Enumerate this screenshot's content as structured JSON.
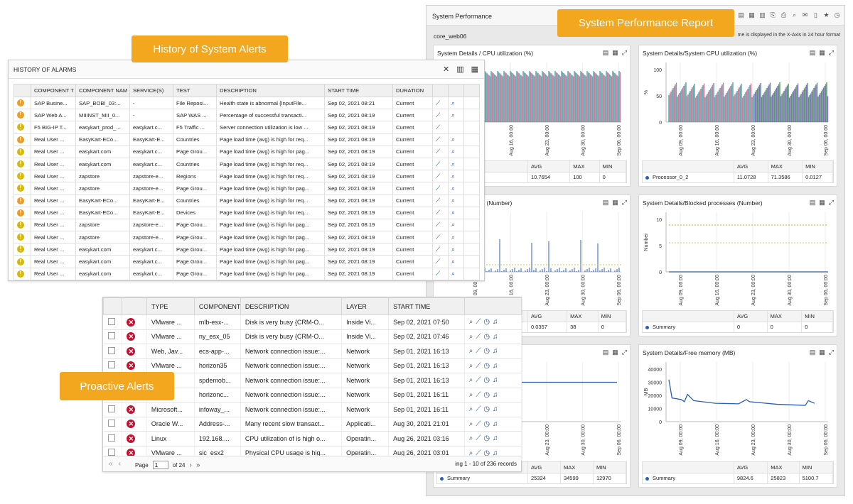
{
  "labels": {
    "history": "History of System Alerts",
    "performance": "System Performance Report",
    "proactive": "Proactive Alerts"
  },
  "performance": {
    "title": "System Performance",
    "server": "core_web06",
    "note": "me is displayed in the X-Axis in 24 hour format",
    "x_ticks": [
      "Aug 09, 00:00",
      "Aug 16, 00:00",
      "Aug 23, 00:00",
      "Aug 30, 00:00",
      "Sep 06, 00:00"
    ],
    "cards": [
      {
        "title": "System Details / CPU utilization (%)",
        "y_ticks": [],
        "ylabel": "",
        "summary": {
          "headers": [
            "AVG",
            "MAX",
            "MIN"
          ],
          "name": "",
          "avg": "10.7654",
          "max": "100",
          "min": "0"
        }
      },
      {
        "title": "System Details/System CPU utilization (%)",
        "y_ticks": [
          "100",
          "50",
          "0"
        ],
        "ylabel": "%",
        "summary": {
          "headers": [
            "AVG",
            "MAX",
            "MIN"
          ],
          "name": "Processor_0_2",
          "avg": "11.0728",
          "max": "71.3586",
          "min": "0.0127"
        }
      },
      {
        "title": "Run queue length (Number)",
        "y_ticks": [],
        "ylabel": "",
        "summary": {
          "headers": [
            "AVG",
            "MAX",
            "MIN"
          ],
          "name": "",
          "avg": "0.0357",
          "max": "38",
          "min": "0"
        }
      },
      {
        "title": "System Details/Blocked processes (Number)",
        "y_ticks": [
          "10",
          "5",
          "0"
        ],
        "ylabel": "Number",
        "summary": {
          "headers": [
            "AVG",
            "MAX",
            "MIN"
          ],
          "name": "Summary",
          "avg": "0",
          "max": "0",
          "min": "0"
        }
      },
      {
        "title": "y (MB)",
        "y_ticks": [],
        "ylabel": "",
        "summary": {
          "headers": [
            "AVG",
            "MAX",
            "MIN"
          ],
          "name": "Summary",
          "avg": "25324",
          "max": "34599",
          "min": "12970"
        }
      },
      {
        "title": "System Details/Free memory (MB)",
        "y_ticks": [
          "40000",
          "30000",
          "20000",
          "10000",
          "0"
        ],
        "ylabel": "MB",
        "summary": {
          "headers": [
            "AVG",
            "MAX",
            "MIN"
          ],
          "name": "Summary",
          "avg": "9824.6",
          "max": "25823",
          "min": "5100.7"
        }
      }
    ]
  },
  "alarms": {
    "title": "HISTORY OF ALARMS",
    "headers": [
      "COMPONENT T",
      "COMPONENT NAM",
      "SERVICE(S)",
      "TEST",
      "DESCRIPTION",
      "START TIME",
      "DURATION"
    ],
    "rows": [
      {
        "level": "major",
        "type": "SAP Busine...",
        "name": "SAP_BOBI_03:...",
        "service": "-",
        "test": "File Reposi...",
        "desc": "Health state is abnormal {InputFile...",
        "start": "Sep 02, 2021 08:21",
        "duration": "Current"
      },
      {
        "level": "major",
        "type": "SAP Web A...",
        "name": "MIIINST_MII_0...",
        "service": "-",
        "test": "SAP WAS ...",
        "desc": "Percentage of successful transacti...",
        "start": "Sep 02, 2021 08:19",
        "duration": "Current"
      },
      {
        "level": "minor",
        "type": "F5 BIG-IP T...",
        "name": "easykart_prod_...",
        "service": "easykart.c...",
        "test": "F5 Traffic ...",
        "desc": "Server connection utilization is low ...",
        "start": "Sep 02, 2021 08:19",
        "duration": "Current"
      },
      {
        "level": "major",
        "type": "Real User ...",
        "name": "EasyKart-ECo...",
        "service": "EasyKart-E...",
        "test": "Countries",
        "desc": "Page load time (avg) is high for req...",
        "start": "Sep 02, 2021 08:19",
        "duration": "Current"
      },
      {
        "level": "minor",
        "type": "Real User ...",
        "name": "easykart.com",
        "service": "easykart.c...",
        "test": "Page Grou...",
        "desc": "Page load time (avg) is high for pag...",
        "start": "Sep 02, 2021 08:19",
        "duration": "Current"
      },
      {
        "level": "minor",
        "type": "Real User ...",
        "name": "easykart.com",
        "service": "easykart.c...",
        "test": "Countries",
        "desc": "Page load time (avg) is high for req...",
        "start": "Sep 02, 2021 08:19",
        "duration": "Current"
      },
      {
        "level": "minor",
        "type": "Real User ...",
        "name": "zapstore",
        "service": "zapstore-e...",
        "test": "Regions",
        "desc": "Page load time (avg) is high for req...",
        "start": "Sep 02, 2021 08:19",
        "duration": "Current"
      },
      {
        "level": "minor",
        "type": "Real User ...",
        "name": "zapstore",
        "service": "zapstore-e...",
        "test": "Page Grou...",
        "desc": "Page load time (avg) is high for pag...",
        "start": "Sep 02, 2021 08:19",
        "duration": "Current"
      },
      {
        "level": "major",
        "type": "Real User ...",
        "name": "EasyKart-ECo...",
        "service": "EasyKart-E...",
        "test": "Countries",
        "desc": "Page load time (avg) is high for req...",
        "start": "Sep 02, 2021 08:19",
        "duration": "Current"
      },
      {
        "level": "major",
        "type": "Real User ...",
        "name": "EasyKart-ECo...",
        "service": "EasyKart-E...",
        "test": "Devices",
        "desc": "Page load time (avg) is high for req...",
        "start": "Sep 02, 2021 08:19",
        "duration": "Current"
      },
      {
        "level": "minor",
        "type": "Real User ...",
        "name": "zapstore",
        "service": "zapstore-e...",
        "test": "Page Grou...",
        "desc": "Page load time (avg) is high for pag...",
        "start": "Sep 02, 2021 08:19",
        "duration": "Current"
      },
      {
        "level": "minor",
        "type": "Real User ...",
        "name": "zapstore",
        "service": "zapstore-e...",
        "test": "Page Grou...",
        "desc": "Page load time (avg) is high for pag...",
        "start": "Sep 02, 2021 08:19",
        "duration": "Current"
      },
      {
        "level": "minor",
        "type": "Real User ...",
        "name": "easykart.com",
        "service": "easykart.c...",
        "test": "Page Grou...",
        "desc": "Page load time (avg) is high for pag...",
        "start": "Sep 02, 2021 08:19",
        "duration": "Current"
      },
      {
        "level": "minor",
        "type": "Real User ...",
        "name": "easykart.com",
        "service": "easykart.c...",
        "test": "Page Grou...",
        "desc": "Page load time (avg) is high for pag...",
        "start": "Sep 02, 2021 08:19",
        "duration": "Current"
      },
      {
        "level": "minor",
        "type": "Real User ...",
        "name": "easykart.com",
        "service": "easykart.c...",
        "test": "Page Grou...",
        "desc": "Page load time (avg) is high for pag...",
        "start": "Sep 02, 2021 08:19",
        "duration": "Current"
      }
    ]
  },
  "proactive": {
    "headers": [
      "TYPE",
      "COMPONENT",
      "DESCRIPTION",
      "LAYER",
      "START TIME"
    ],
    "rows": [
      {
        "type": "VMware ...",
        "comp": "mlb-esx-...",
        "desc": "Disk is very busy {CRM-O...",
        "layer": "Inside Vi...",
        "start": "Sep 02, 2021 07:50"
      },
      {
        "type": "VMware ...",
        "comp": "ny_esx_05",
        "desc": "Disk is very busy {CRM-O...",
        "layer": "Inside Vi...",
        "start": "Sep 02, 2021 07:46"
      },
      {
        "type": "Web, Jav...",
        "comp": "ecs-app-...",
        "desc": "Network connection issue:...",
        "layer": "Network",
        "start": "Sep 01, 2021 16:13"
      },
      {
        "type": "VMware ...",
        "comp": "horizon35",
        "desc": "Network connection issue:...",
        "layer": "Network",
        "start": "Sep 01, 2021 16:13"
      },
      {
        "type": "...oft...",
        "comp": "spdemob...",
        "desc": "Network connection issue:...",
        "layer": "Network",
        "start": "Sep 01, 2021 16:13"
      },
      {
        "type": "...",
        "comp": "horizonc...",
        "desc": "Network connection issue:...",
        "layer": "Network",
        "start": "Sep 01, 2021 16:11"
      },
      {
        "type": "Microsoft...",
        "comp": "infoway_...",
        "desc": "Network connection issue:...",
        "layer": "Network",
        "start": "Sep 01, 2021 16:11"
      },
      {
        "type": "Oracle W...",
        "comp": "Address-...",
        "desc": "Many recent slow transact...",
        "layer": "Applicati...",
        "start": "Aug 30, 2021 21:01"
      },
      {
        "type": "Linux",
        "comp": "192.168....",
        "desc": "CPU utilization of is high o...",
        "layer": "Operatin...",
        "start": "Aug 26, 2021 03:16"
      },
      {
        "type": "VMware ...",
        "comp": "sic_esx2",
        "desc": "Physical CPU usage is hig...",
        "layer": "Operatin...",
        "start": "Aug 26, 2021 03:01"
      }
    ],
    "footer": {
      "page_label": "Page",
      "page": "1",
      "of": "of 24",
      "records": "ing 1 - 10 of 236  records"
    }
  }
}
